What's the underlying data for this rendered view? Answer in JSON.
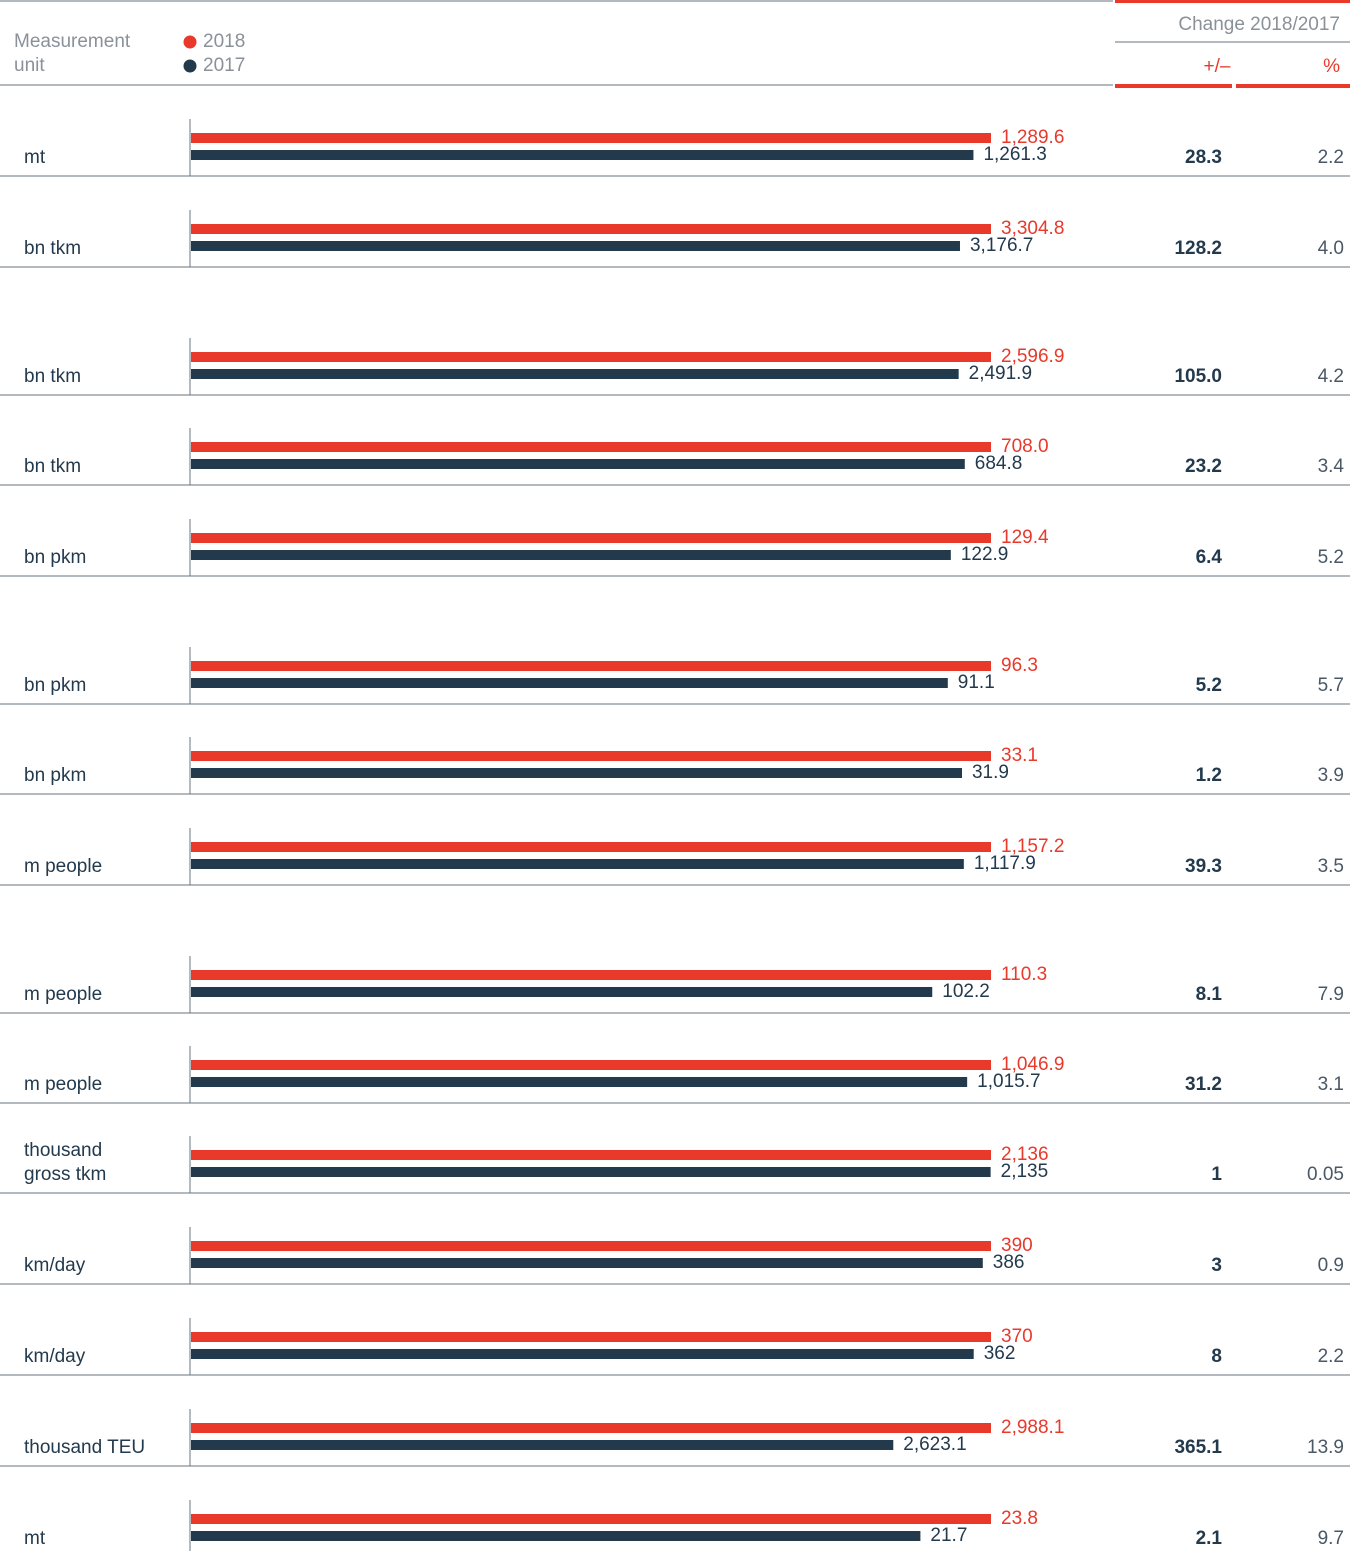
{
  "chart_data": {
    "type": "bar",
    "unit_header": "Measurement unit",
    "change_header": "Change 2018/2017",
    "categories": [
      "mt",
      "bn tkm",
      "bn tkm",
      "bn tkm",
      "bn pkm",
      "bn pkm",
      "bn pkm",
      "m people",
      "m people",
      "m people",
      "thousand gross tkm",
      "km/day",
      "km/day",
      "thousand TEU",
      "mt"
    ],
    "series": [
      {
        "name": "2018",
        "color": "#e8392b",
        "values": [
          1289.6,
          3304.8,
          2596.9,
          708.0,
          129.4,
          96.3,
          33.1,
          1157.2,
          110.3,
          1046.9,
          2136,
          390,
          370,
          2988.1,
          23.8
        ],
        "value_labels": [
          "1,289.6",
          "3,304.8",
          "2,596.9",
          "708.0",
          "129.4",
          "96.3",
          "33.1",
          "1,157.2",
          "110.3",
          "1,046.9",
          "2,136",
          "390",
          "370",
          "2,988.1",
          "23.8"
        ]
      },
      {
        "name": "2017",
        "color": "#233a4d",
        "values": [
          1261.3,
          3176.7,
          2491.9,
          684.8,
          122.9,
          91.1,
          31.9,
          1117.9,
          102.2,
          1015.7,
          2135,
          386,
          362,
          2623.1,
          21.7
        ],
        "value_labels": [
          "1,261.3",
          "3,176.7",
          "2,491.9",
          "684.8",
          "122.9",
          "91.1",
          "31.9",
          "1,117.9",
          "102.2",
          "1,015.7",
          "2,135",
          "386",
          "362",
          "2,623.1",
          "21.7"
        ]
      }
    ],
    "change": {
      "name": "+/–",
      "values": [
        28.3,
        128.2,
        105.0,
        23.2,
        6.4,
        5.2,
        1.2,
        39.3,
        8.1,
        31.2,
        1,
        3,
        8,
        365.1,
        2.1
      ],
      "value_labels": [
        "28.3",
        "128.2",
        "105.0",
        "23.2",
        "6.4",
        "5.2",
        "1.2",
        "39.3",
        "8.1",
        "31.2",
        "1",
        "3",
        "8",
        "365.1",
        "2.1"
      ]
    },
    "percent": {
      "name": "%",
      "values": [
        2.2,
        4.0,
        4.2,
        3.4,
        5.2,
        5.7,
        3.9,
        3.5,
        7.9,
        3.1,
        0.05,
        0.9,
        2.2,
        13.9,
        9.7
      ],
      "value_labels": [
        "2.2",
        "4.0",
        "4.2",
        "3.4",
        "5.2",
        "5.7",
        "3.9",
        "3.5",
        "7.9",
        "3.1",
        "0.05",
        "0.9",
        "2.2",
        "13.9",
        "9.7"
      ]
    }
  }
}
